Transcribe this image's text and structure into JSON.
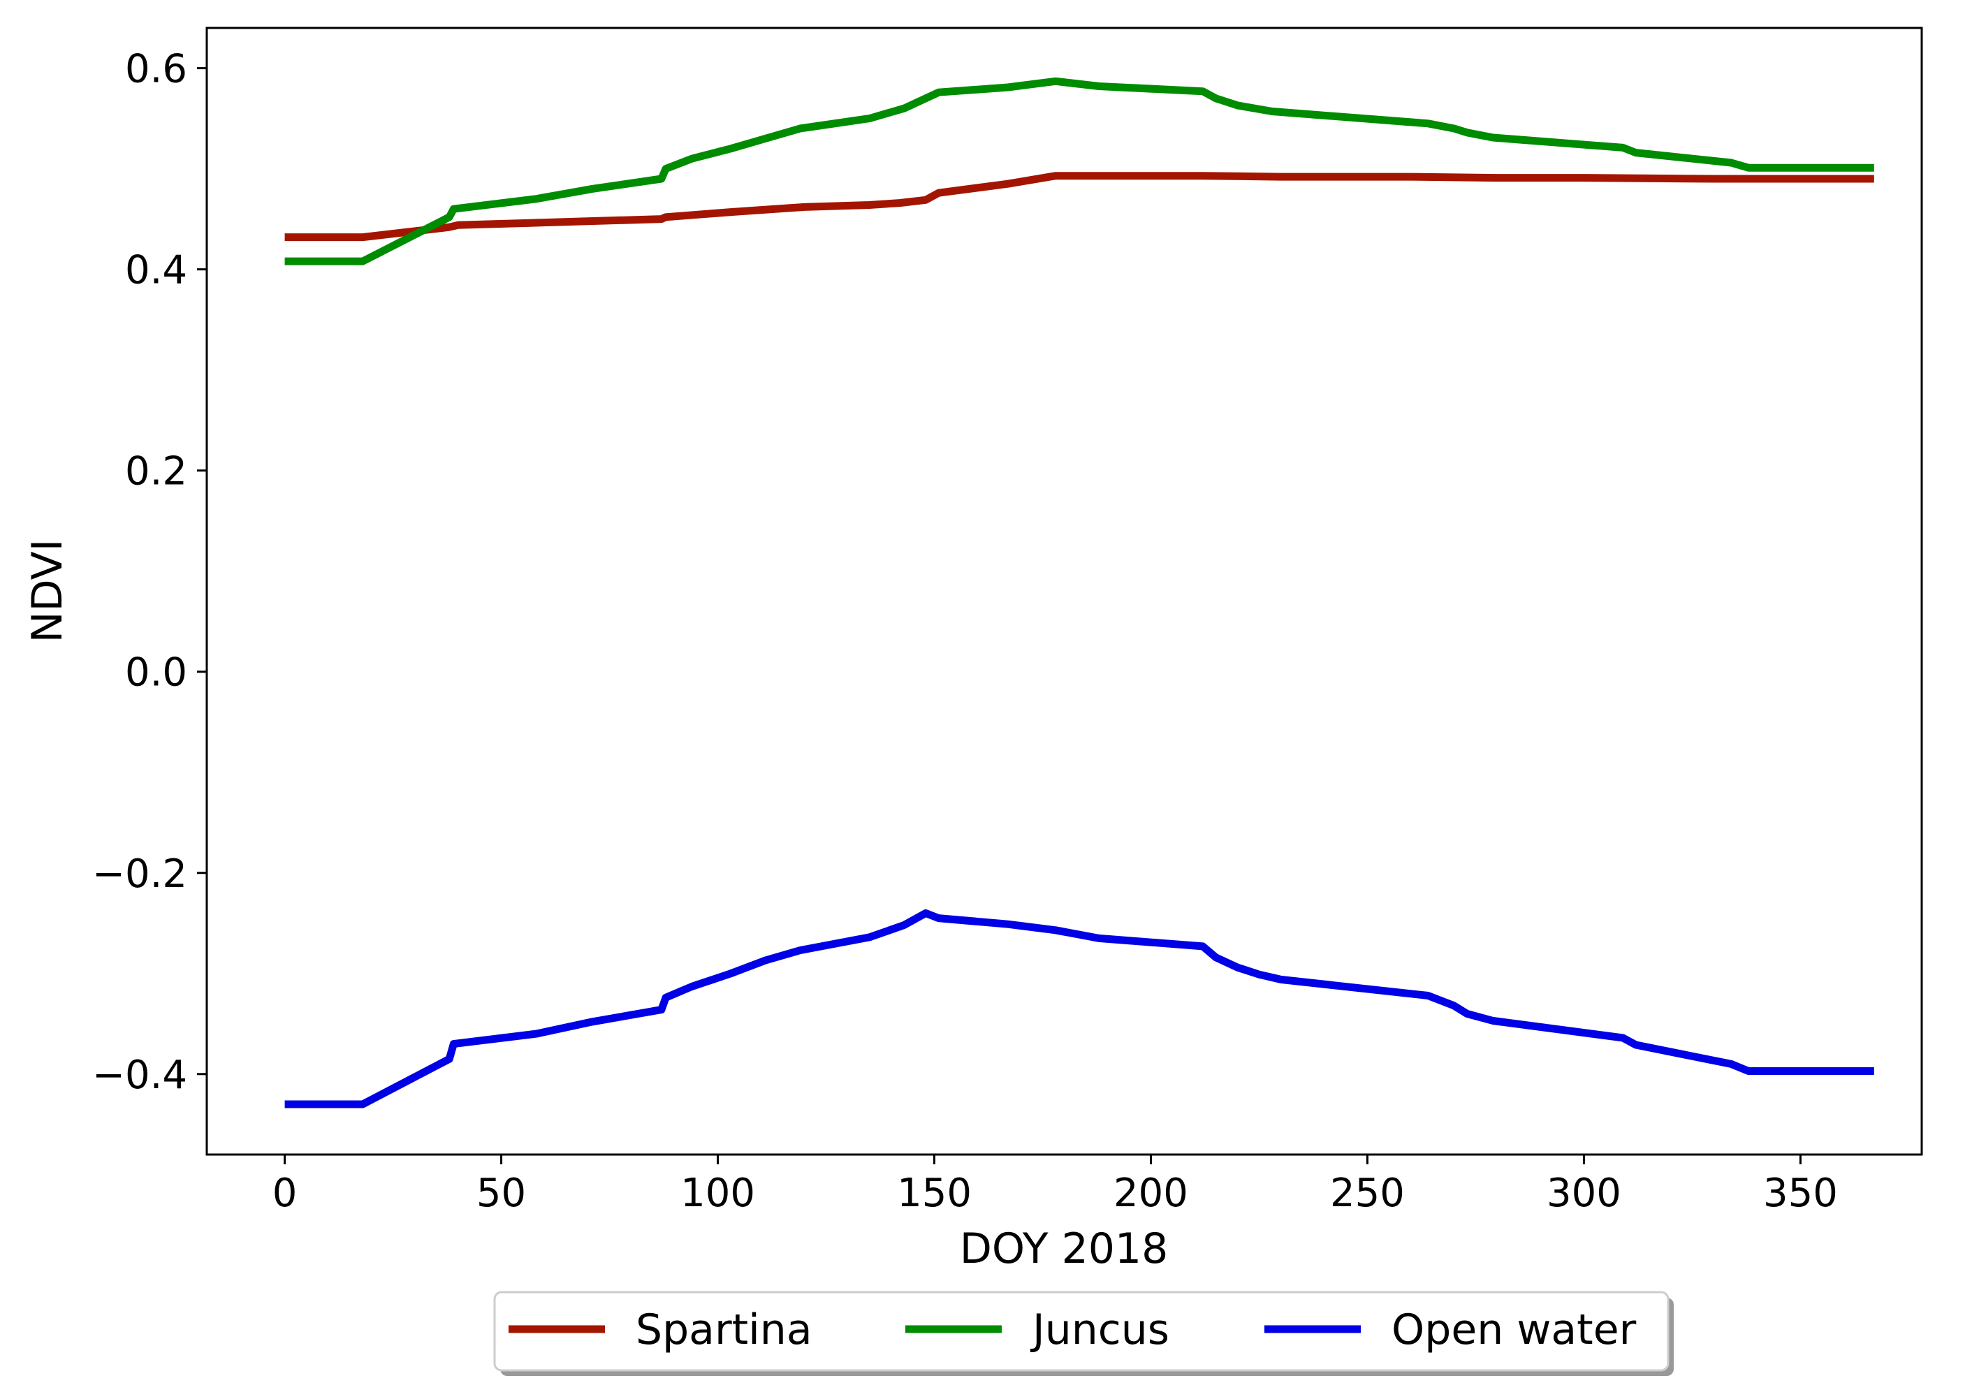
{
  "chart_data": {
    "type": "line",
    "title": "",
    "xlabel": "DOY 2018",
    "ylabel": "NDVI",
    "xlim": [
      -18,
      378
    ],
    "ylim": [
      -0.48,
      0.64
    ],
    "xticks": [
      0,
      50,
      100,
      150,
      200,
      250,
      300,
      350
    ],
    "xtick_labels": [
      "0",
      "50",
      "100",
      "150",
      "200",
      "250",
      "300",
      "350"
    ],
    "yticks": [
      -0.4,
      -0.2,
      0.0,
      0.2,
      0.4,
      0.6
    ],
    "ytick_labels": [
      "−0.4",
      "−0.2",
      "0.0",
      "0.2",
      "0.4",
      "0.6"
    ],
    "grid": false,
    "legend_position": "bottom-center-outside",
    "series": [
      {
        "name": "Spartina",
        "color": "#a31500",
        "x": [
          0,
          18,
          38,
          40,
          87,
          88,
          103,
          120,
          135,
          142,
          148,
          151,
          167,
          178,
          212,
          230,
          260,
          280,
          300,
          330,
          367
        ],
        "y": [
          0.432,
          0.432,
          0.442,
          0.444,
          0.45,
          0.452,
          0.457,
          0.462,
          0.464,
          0.466,
          0.469,
          0.476,
          0.485,
          0.493,
          0.493,
          0.492,
          0.492,
          0.491,
          0.491,
          0.49,
          0.49
        ]
      },
      {
        "name": "Juncus",
        "color": "#008c00",
        "x": [
          0,
          18,
          38,
          39,
          58,
          71,
          87,
          88,
          94,
          103,
          111,
          119,
          135,
          143,
          151,
          167,
          178,
          188,
          212,
          215,
          220,
          228,
          264,
          270,
          273,
          279,
          309,
          312,
          334,
          338,
          367
        ],
        "y": [
          0.408,
          0.408,
          0.452,
          0.46,
          0.47,
          0.48,
          0.49,
          0.5,
          0.51,
          0.52,
          0.53,
          0.54,
          0.55,
          0.56,
          0.576,
          0.581,
          0.587,
          0.582,
          0.577,
          0.57,
          0.563,
          0.557,
          0.545,
          0.54,
          0.536,
          0.531,
          0.521,
          0.516,
          0.506,
          0.501,
          0.501
        ]
      },
      {
        "name": "Open water",
        "color": "#0000e6",
        "x": [
          0,
          18,
          38,
          39,
          58,
          71,
          87,
          88,
          94,
          103,
          111,
          119,
          135,
          143,
          148,
          151,
          167,
          178,
          188,
          212,
          215,
          220,
          225,
          230,
          264,
          270,
          273,
          279,
          309,
          312,
          334,
          338,
          367
        ],
        "y": [
          -0.43,
          -0.43,
          -0.385,
          -0.37,
          -0.36,
          -0.348,
          -0.336,
          -0.324,
          -0.313,
          -0.3,
          -0.287,
          -0.277,
          -0.264,
          -0.252,
          -0.24,
          -0.245,
          -0.251,
          -0.257,
          -0.265,
          -0.273,
          -0.284,
          -0.294,
          -0.301,
          -0.306,
          -0.322,
          -0.332,
          -0.34,
          -0.347,
          -0.364,
          -0.371,
          -0.39,
          -0.397,
          -0.397
        ]
      }
    ]
  }
}
